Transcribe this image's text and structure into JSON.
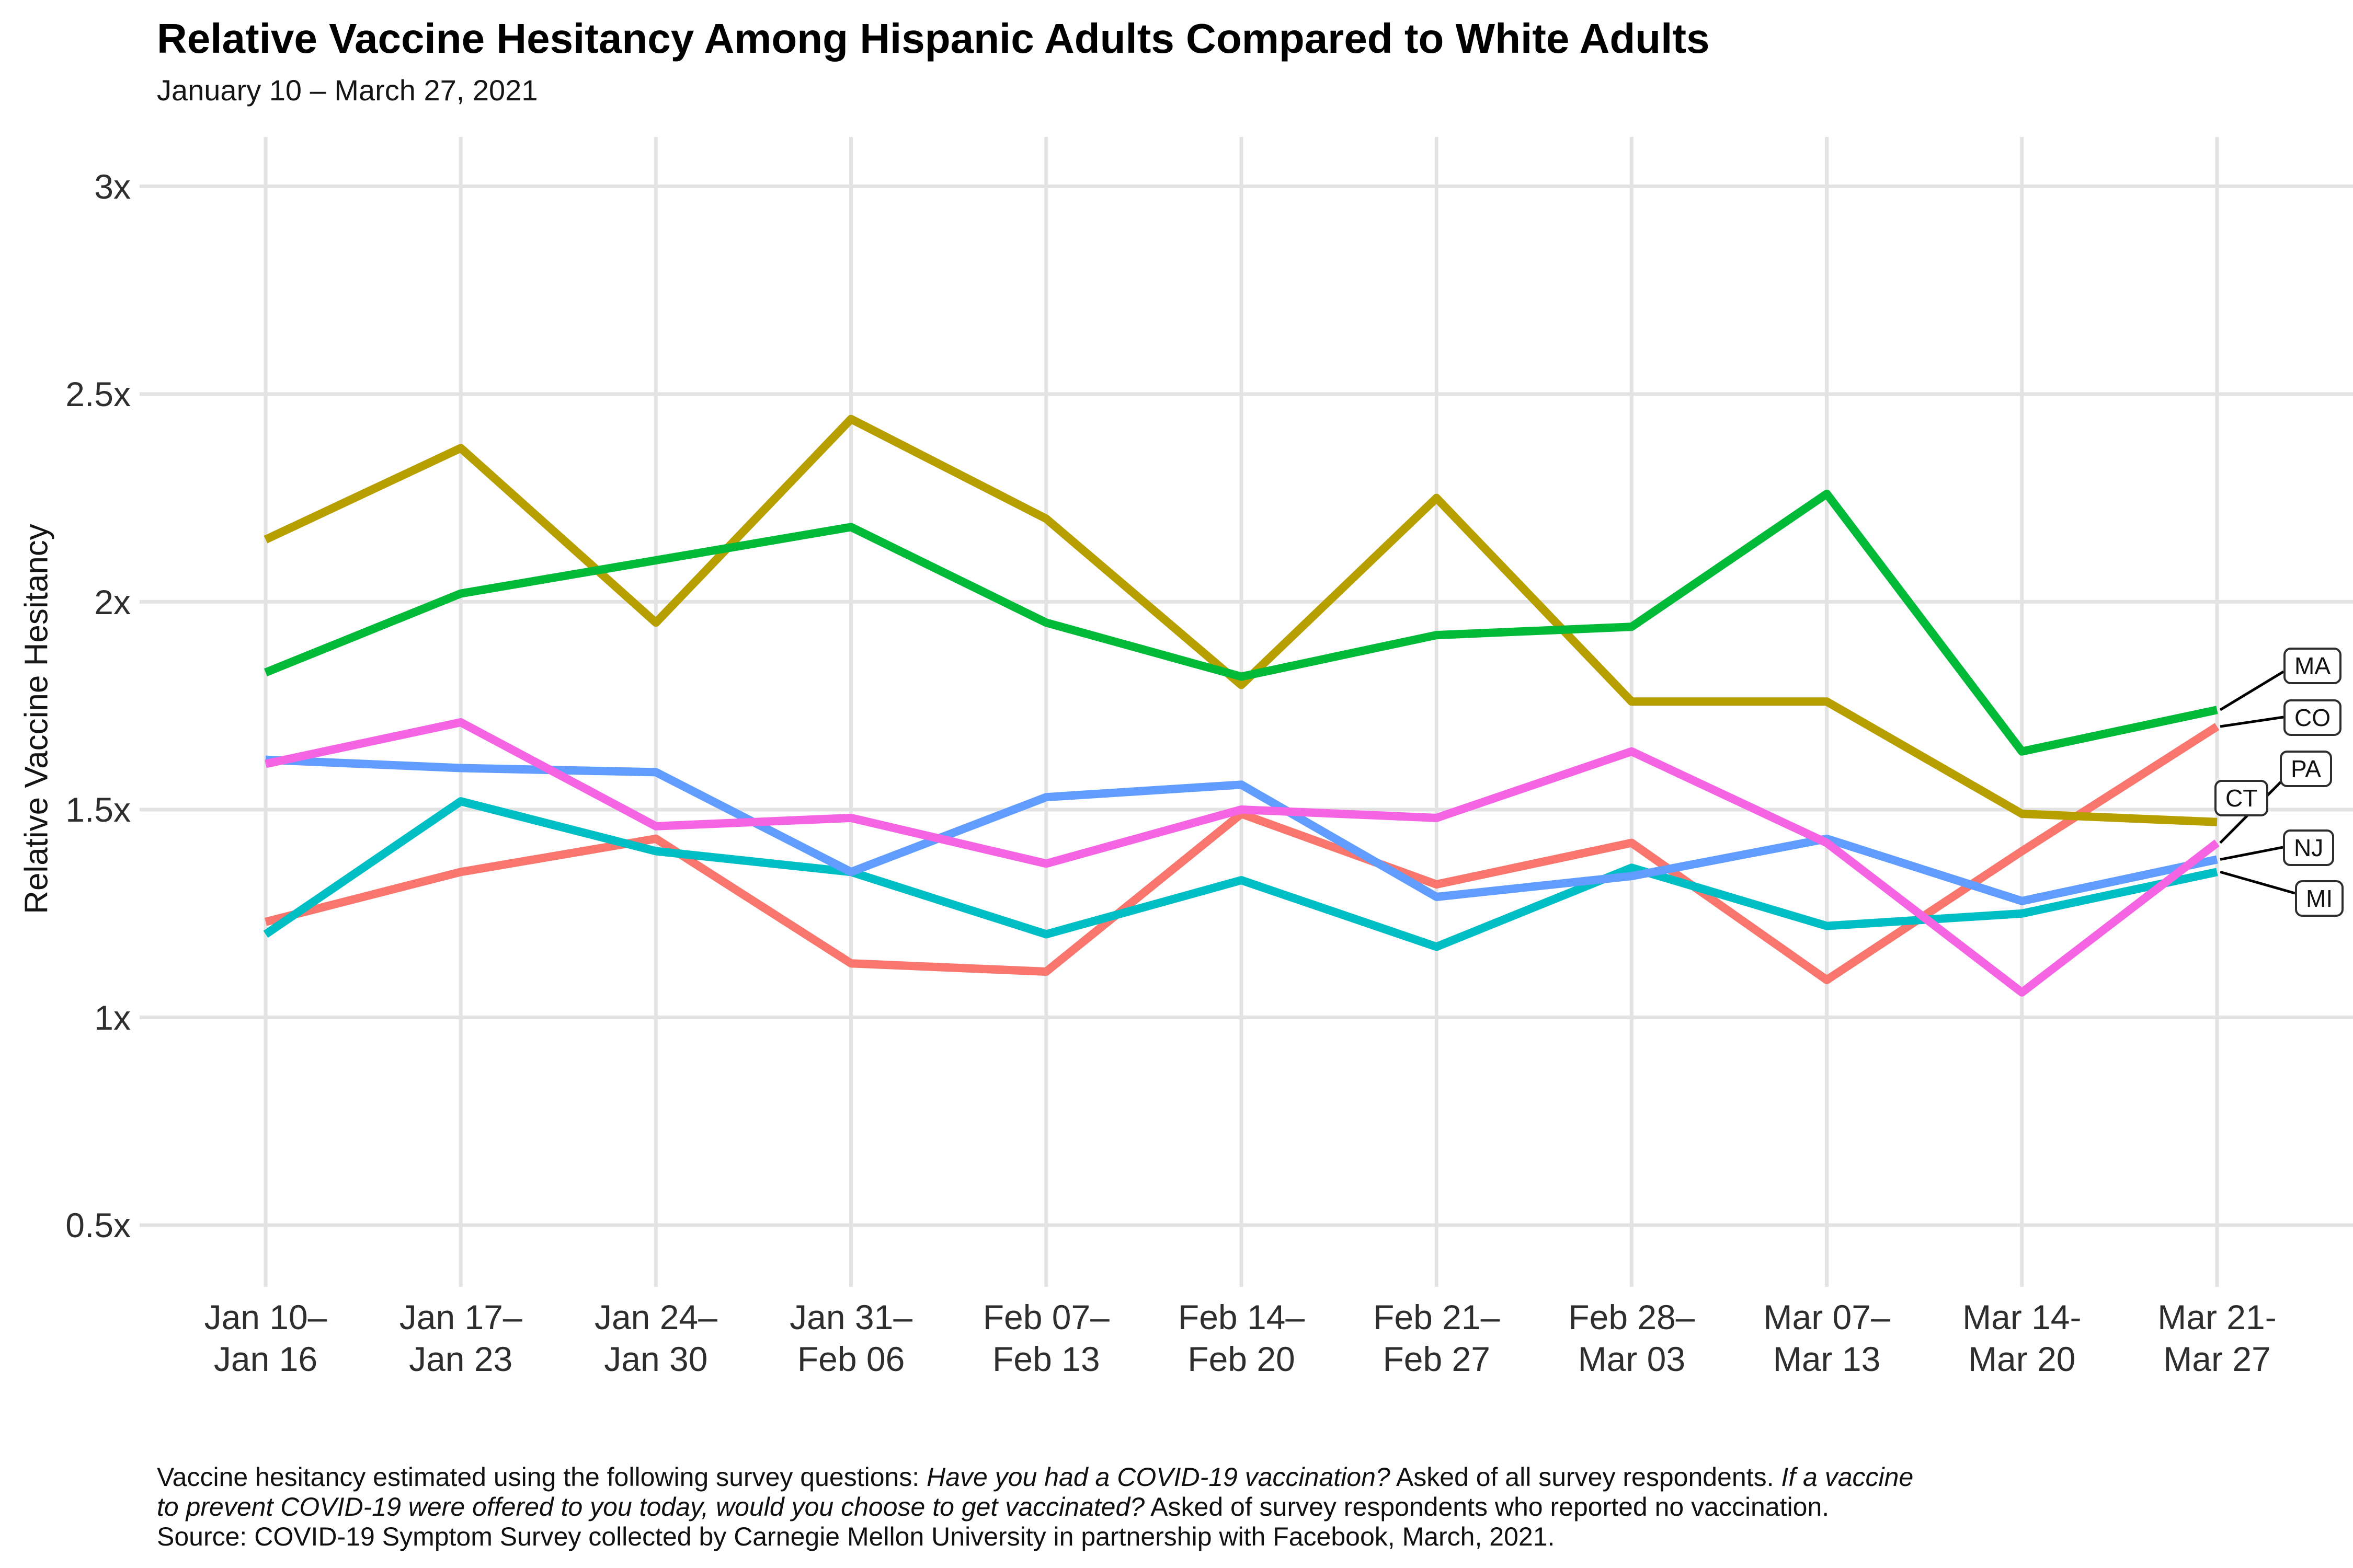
{
  "title": "Relative Vaccine Hesitancy Among Hispanic Adults Compared to White Adults",
  "subtitle": "January 10 – March 27, 2021",
  "y_axis_title": "Relative Vaccine Hesitancy",
  "chart_data": {
    "type": "line",
    "title": "Relative Vaccine Hesitancy Among Hispanic Adults Compared to White Adults",
    "subtitle": "January 10 – March 27, 2021",
    "ylabel": "Relative Vaccine Hesitancy",
    "xlabel": "",
    "ylim": [
      0.5,
      3
    ],
    "grid": true,
    "legend_position": "right-edge-labels",
    "categories": [
      "Jan 10–Jan 16",
      "Jan 17–Jan 23",
      "Jan 24–Jan 30",
      "Jan 31–Feb 06",
      "Feb 07–Feb 13",
      "Feb 14–Feb 20",
      "Feb 21–Feb 27",
      "Feb 28–Mar 03",
      "Mar 07–Mar 13",
      "Mar 14-Mar 20",
      "Mar 21-Mar 27"
    ],
    "x_tick_lines": [
      [
        "Jan 10–",
        "Jan 16"
      ],
      [
        "Jan 17–",
        "Jan 23"
      ],
      [
        "Jan 24–",
        "Jan 30"
      ],
      [
        "Jan 31–",
        "Feb 06"
      ],
      [
        "Feb 07–",
        "Feb 13"
      ],
      [
        "Feb 14–",
        "Feb 20"
      ],
      [
        "Feb 21–",
        "Feb 27"
      ],
      [
        "Feb 28–",
        "Mar 03"
      ],
      [
        "Mar 07–",
        "Mar 13"
      ],
      [
        "Mar 14-",
        "Mar 20"
      ],
      [
        "Mar 21-",
        "Mar 27"
      ]
    ],
    "y_ticks": [
      {
        "label": "3x",
        "value": 3
      },
      {
        "label": "2.5x",
        "value": 2.5
      },
      {
        "label": "2x",
        "value": 2
      },
      {
        "label": "1.5x",
        "value": 1.5
      },
      {
        "label": "1x",
        "value": 1
      },
      {
        "label": "0.5x",
        "value": 0.5
      }
    ],
    "series": [
      {
        "name": "CO",
        "color": "#F8766D",
        "values": [
          1.23,
          1.35,
          1.43,
          1.13,
          1.11,
          1.49,
          1.32,
          1.42,
          1.09,
          1.4,
          1.7
        ]
      },
      {
        "name": "CT",
        "color": "#B79F00",
        "values": [
          2.15,
          2.37,
          1.95,
          2.44,
          2.2,
          1.8,
          2.25,
          1.76,
          1.76,
          1.49,
          1.47
        ]
      },
      {
        "name": "MA",
        "color": "#00BA38",
        "values": [
          1.83,
          2.02,
          2.1,
          2.18,
          1.95,
          1.82,
          1.92,
          1.94,
          2.26,
          1.64,
          1.74
        ]
      },
      {
        "name": "MI",
        "color": "#00BFC4",
        "values": [
          1.2,
          1.52,
          1.4,
          1.35,
          1.2,
          1.33,
          1.17,
          1.36,
          1.22,
          1.25,
          1.35
        ]
      },
      {
        "name": "NJ",
        "color": "#619CFF",
        "values": [
          1.62,
          1.6,
          1.59,
          1.35,
          1.53,
          1.56,
          1.29,
          1.34,
          1.43,
          1.28,
          1.38
        ]
      },
      {
        "name": "PA",
        "color": "#F564E3",
        "values": [
          1.61,
          1.71,
          1.46,
          1.48,
          1.37,
          1.5,
          1.48,
          1.64,
          1.42,
          1.06,
          1.42
        ]
      }
    ],
    "label_order_top_to_bottom": [
      "MA",
      "CO",
      "PA",
      "CT",
      "NJ",
      "MI"
    ]
  },
  "caption_lines": [
    [
      {
        "t": "Vaccine hesitancy estimated using the following survey questions: ",
        "i": false
      },
      {
        "t": "Have you had a COVID-19 vaccination?",
        "i": true
      },
      {
        "t": " Asked of all survey respondents. ",
        "i": false
      },
      {
        "t": "If a vaccine",
        "i": true
      }
    ],
    [
      {
        "t": "to prevent COVID-19 were offered to you today, would you choose to get vaccinated?",
        "i": true
      },
      {
        "t": " Asked of survey respondents who reported no vaccination.",
        "i": false
      }
    ],
    [
      {
        "t": "Source: COVID-19 Symptom Survey collected by Carnegie Mellon University in partnership with Facebook, March, 2021.",
        "i": false
      }
    ]
  ],
  "colors": {
    "grid": "#E3E3E3",
    "label_border": "#2D2D2D",
    "leader": "#000000"
  }
}
